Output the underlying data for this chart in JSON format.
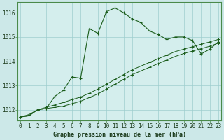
{
  "title": "Graphe pression niveau de la mer (hPa)",
  "fig_bg": "#cce8e8",
  "plot_bg": "#d4eeed",
  "grid_color": "#9ecece",
  "line_color": "#1a5c1a",
  "xlim": [
    -0.3,
    23.3
  ],
  "ylim": [
    1011.55,
    1016.45
  ],
  "y_ticks": [
    1012,
    1013,
    1014,
    1015,
    1016
  ],
  "x_ticks": [
    0,
    1,
    2,
    3,
    4,
    5,
    6,
    7,
    8,
    9,
    10,
    11,
    12,
    13,
    14,
    15,
    16,
    17,
    18,
    19,
    20,
    21,
    22,
    23
  ],
  "main_line": [
    1011.7,
    1011.8,
    1012.0,
    1012.05,
    1012.55,
    1012.8,
    1013.35,
    1013.3,
    1015.35,
    1015.15,
    1016.05,
    1016.2,
    1016.0,
    1015.75,
    1015.6,
    1015.25,
    1015.1,
    1014.9,
    1015.0,
    1015.0,
    1014.85,
    1014.3,
    1014.5,
    1014.8
  ],
  "line2": [
    1011.7,
    1011.75,
    1012.0,
    1012.05,
    1012.1,
    1012.15,
    1012.25,
    1012.35,
    1012.5,
    1012.65,
    1012.85,
    1013.05,
    1013.25,
    1013.45,
    1013.6,
    1013.75,
    1013.9,
    1014.05,
    1014.2,
    1014.32,
    1014.42,
    1014.52,
    1014.62,
    1014.75
  ],
  "line3": [
    1011.7,
    1011.75,
    1012.0,
    1012.1,
    1012.2,
    1012.3,
    1012.42,
    1012.52,
    1012.68,
    1012.85,
    1013.05,
    1013.25,
    1013.45,
    1013.65,
    1013.8,
    1013.95,
    1014.1,
    1014.25,
    1014.4,
    1014.5,
    1014.6,
    1014.7,
    1014.8,
    1014.9
  ]
}
